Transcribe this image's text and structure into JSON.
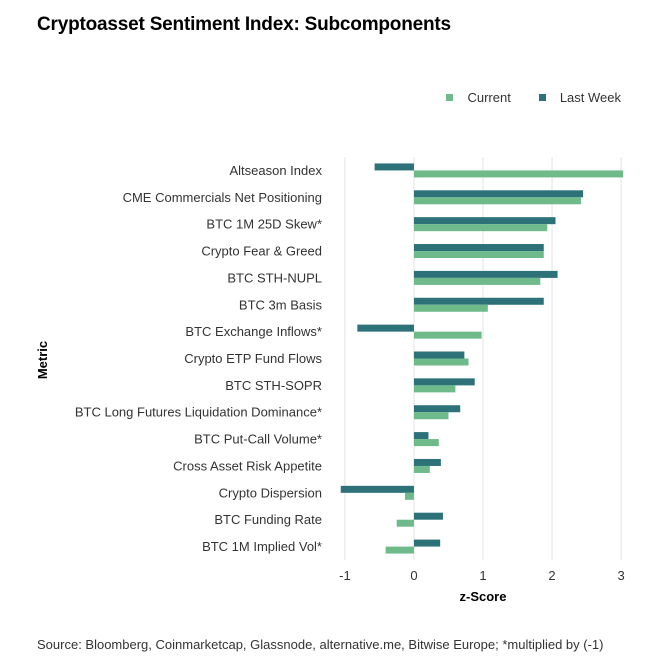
{
  "title": "Cryptoasset Sentiment Index: Subcomponents",
  "source": "Source: Bloomberg, Coinmarketcap, Glassnode, alternative.me, Bitwise Europe; *multiplied by (-1)",
  "colors": {
    "current": "#6fba8b",
    "last_week": "#2c7278",
    "grid": "#e3e3e3"
  },
  "chart_data": {
    "type": "bar",
    "orientation": "horizontal",
    "categories": [
      "Altseason Index",
      "CME Commercials Net Positioning",
      "BTC 1M 25D Skew*",
      "Crypto Fear & Greed",
      "BTC STH-NUPL",
      "BTC 3m Basis",
      "BTC Exchange Inflows*",
      "Crypto ETP Fund Flows",
      "BTC STH-SOPR",
      "BTC Long Futures Liquidation Dominance*",
      "BTC Put-Call Volume*",
      "Cross Asset Risk Appetite",
      "Crypto Dispersion",
      "BTC Funding Rate",
      "BTC 1M Implied Vol*"
    ],
    "series": [
      {
        "name": "Current",
        "values": [
          3.03,
          2.42,
          1.93,
          1.88,
          1.83,
          1.07,
          0.98,
          0.79,
          0.6,
          0.5,
          0.36,
          0.23,
          -0.13,
          -0.25,
          -0.41
        ]
      },
      {
        "name": "Last Week",
        "values": [
          -0.57,
          2.45,
          2.05,
          1.88,
          2.08,
          1.88,
          -0.82,
          0.73,
          0.88,
          0.67,
          0.21,
          0.39,
          -1.06,
          0.42,
          0.38
        ]
      }
    ],
    "xlabel": "z-Score",
    "ylabel": "Metric",
    "xlim": [
      -1.1,
      3.1
    ],
    "xticks": [
      -1,
      0,
      1,
      2,
      3
    ],
    "grid": true,
    "legend_position": "top-right"
  }
}
